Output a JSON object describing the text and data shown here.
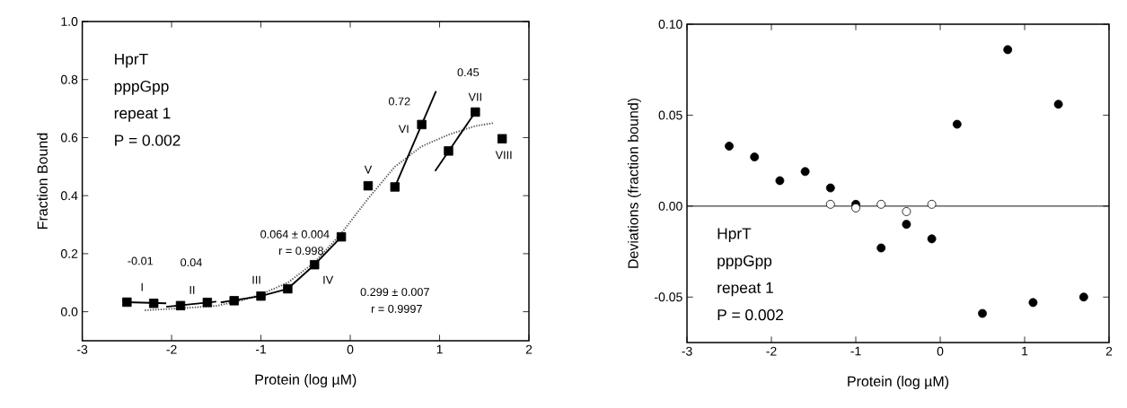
{
  "chart_data": [
    {
      "type": "scatter",
      "xlabel": "Protein (log µM)",
      "ylabel": "Fraction Bound",
      "xlim": [
        -3,
        2
      ],
      "ylim": [
        -0.1,
        1.0
      ],
      "xticks": [
        -3,
        -2,
        -1,
        0,
        1,
        2
      ],
      "yticks": [
        {
          "value": 0,
          "label": "0.0"
        },
        0.2,
        0.4,
        0.6,
        0.8,
        {
          "value": 1,
          "label": "1.0"
        }
      ],
      "series": [
        {
          "type": "line",
          "line_style": "dotted",
          "marker": "none",
          "color": "#555555",
          "x": [
            -2.3,
            -2.0,
            -1.5,
            -1.2,
            -1.0,
            -0.7,
            -0.4,
            -0.1,
            0.2,
            0.5,
            0.8,
            1.1,
            1.4,
            1.6
          ],
          "values": [
            0.005,
            0.01,
            0.02,
            0.04,
            0.06,
            0.1,
            0.17,
            0.27,
            0.39,
            0.5,
            0.57,
            0.61,
            0.64,
            0.65
          ]
        },
        {
          "type": "line",
          "marker": "none",
          "color": "#000000",
          "x": [
            -2.5,
            -2.06
          ],
          "values": [
            0.033,
            0.029
          ]
        },
        {
          "type": "line",
          "marker": "none",
          "color": "#000000",
          "x": [
            -2.06,
            -1.5
          ],
          "values": [
            0.017,
            0.035
          ]
        },
        {
          "type": "line",
          "marker": "none",
          "color": "#000000",
          "x": [
            -1.45,
            -1.0,
            -0.7
          ],
          "values": [
            0.032,
            0.054,
            0.079
          ]
        },
        {
          "type": "line",
          "marker": "none",
          "color": "#000000",
          "x": [
            -0.7,
            -0.4,
            -0.1
          ],
          "values": [
            0.079,
            0.162,
            0.258
          ]
        },
        {
          "type": "line",
          "marker": "none",
          "color": "#000000",
          "x": [
            0.5,
            0.96
          ],
          "values": [
            0.43,
            0.76
          ]
        },
        {
          "type": "line",
          "marker": "none",
          "color": "#000000",
          "x": [
            0.95,
            1.4
          ],
          "values": [
            0.485,
            0.688
          ]
        },
        {
          "type": "scatter",
          "marker": "square",
          "color": "#000000",
          "x": [
            -2.5,
            -2.2,
            -1.9,
            -1.6,
            -1.3,
            -1.0,
            -0.7,
            -0.4,
            -0.1,
            0.2,
            0.5,
            0.8,
            1.1,
            1.4,
            1.7
          ],
          "values": [
            0.033,
            0.029,
            0.021,
            0.032,
            0.038,
            0.054,
            0.079,
            0.162,
            0.258,
            0.434,
            0.43,
            0.645,
            0.554,
            0.688,
            0.596
          ]
        }
      ],
      "annotations": [
        "HprT",
        "pppGpp",
        "repeat 1",
        "P = 0.002",
        "I",
        "II",
        "III",
        "IV",
        "V",
        "VI",
        "VII",
        "VIII",
        "-0.01",
        "0.04",
        "0.064 ± 0.004",
        "r = 0.998",
        "0.299 ± 0.007",
        "r = 0.9997",
        "0.72",
        "0.45"
      ]
    },
    {
      "type": "scatter",
      "xlabel": "Protein (log µM)",
      "ylabel": "Deviations (fraction bound)",
      "xlim": [
        -3,
        2
      ],
      "ylim": [
        -0.075,
        0.1
      ],
      "xticks": [
        -3,
        -2,
        -1,
        0,
        1,
        2
      ],
      "yticks": [
        {
          "value": -0.05,
          "label": "-0.05"
        },
        {
          "value": 0,
          "label": "0.00"
        },
        0.05,
        {
          "value": 0.1,
          "label": "0.10"
        }
      ],
      "marker": "circle",
      "series": [
        {
          "color": "#000000",
          "x": [
            -2.5,
            -2.2,
            -1.9,
            -1.6,
            -1.3,
            -1.0,
            -0.7,
            -0.4,
            -0.1,
            0.2,
            0.5,
            0.8,
            1.1,
            1.4,
            1.7
          ],
          "values": [
            0.033,
            0.027,
            0.014,
            0.019,
            0.01,
            0.001,
            -0.023,
            -0.01,
            -0.018,
            0.045,
            -0.059,
            0.086,
            -0.053,
            0.056,
            -0.05
          ]
        },
        {
          "color": "#ffffff",
          "x": [
            -1.3,
            -1.0,
            -0.7,
            -0.4,
            -0.1
          ],
          "values": [
            0.001,
            -0.001,
            0.001,
            -0.003,
            0.001
          ]
        }
      ],
      "ref_lines": [
        {
          "axis": "y",
          "value": 0,
          "color": "#000000"
        }
      ],
      "annotations": [
        "HprT",
        "pppGpp",
        "repeat 1",
        "P = 0.002"
      ]
    }
  ]
}
